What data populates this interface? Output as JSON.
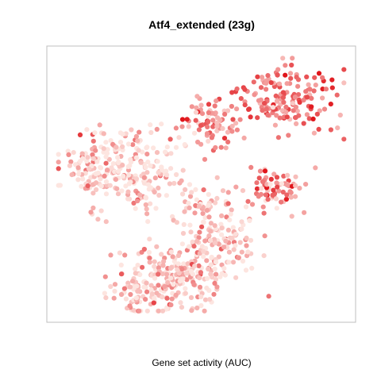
{
  "chart_data": {
    "type": "scatter",
    "title": "Atf4_extended (23g)",
    "xlabel": "Gene set activity (AUC)",
    "ylabel": "",
    "xlim": [
      0,
      100
    ],
    "ylim": [
      0,
      100
    ],
    "grid": false,
    "legend": "none",
    "axis_ticks": false,
    "color_scale": {
      "low": "#fde5e0",
      "high": "#e0151b",
      "meaning": "Gene set activity (AUC)"
    },
    "clusters": [
      {
        "x": 78,
        "y": 84,
        "sx": 9,
        "sy": 7,
        "n": 170,
        "level": 0.55
      },
      {
        "x": 54,
        "y": 73,
        "sx": 5,
        "sy": 4,
        "n": 70,
        "level": 0.45
      },
      {
        "x": 27,
        "y": 55,
        "sx": 11,
        "sy": 9,
        "n": 240,
        "level": 0.08
      },
      {
        "x": 12,
        "y": 56,
        "sx": 4,
        "sy": 5,
        "n": 40,
        "level": 0.07
      },
      {
        "x": 52,
        "y": 40,
        "sx": 5,
        "sy": 5,
        "n": 50,
        "level": 0.15
      },
      {
        "x": 75,
        "y": 48,
        "sx": 6,
        "sy": 4,
        "n": 70,
        "level": 0.38
      },
      {
        "x": 56,
        "y": 26,
        "sx": 7,
        "sy": 6,
        "n": 110,
        "level": 0.18
      },
      {
        "x": 40,
        "y": 14,
        "sx": 10,
        "sy": 6,
        "n": 220,
        "level": 0.14
      },
      {
        "x": 30,
        "y": 6,
        "sx": 4,
        "sy": 3,
        "n": 40,
        "level": 0.2
      }
    ]
  }
}
